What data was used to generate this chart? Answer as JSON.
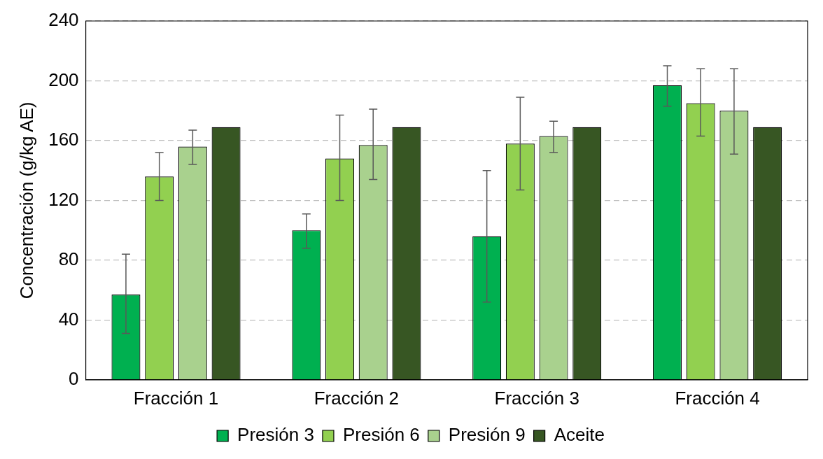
{
  "chart_data": {
    "type": "bar",
    "ylabel": "Concentración (g/kg AE)",
    "categories": [
      "Fracción 1",
      "Fracción 2",
      "Fracción 3",
      "Fracción 4"
    ],
    "series": [
      {
        "name": "Presión 3",
        "color": "#00b050",
        "values": [
          57,
          100,
          96,
          197
        ],
        "errors": [
          [
            31,
            84
          ],
          [
            88,
            111
          ],
          [
            52,
            140
          ],
          [
            183,
            210
          ]
        ]
      },
      {
        "name": "Presión 6",
        "color": "#92d050",
        "values": [
          136,
          148,
          158,
          185
        ],
        "errors": [
          [
            120,
            152
          ],
          [
            120,
            177
          ],
          [
            127,
            189
          ],
          [
            163,
            208
          ]
        ]
      },
      {
        "name": "Presión 9",
        "color": "#a9d18e",
        "values": [
          156,
          157,
          163,
          180
        ],
        "errors": [
          [
            144,
            167
          ],
          [
            134,
            181
          ],
          [
            152,
            173
          ],
          [
            151,
            208
          ]
        ]
      },
      {
        "name": "Aceite",
        "color": "#375623",
        "values": [
          169,
          169,
          169,
          169
        ]
      }
    ],
    "ylim": [
      0,
      240
    ],
    "yticks": [
      0,
      40,
      80,
      120,
      160,
      200,
      240
    ],
    "grid": "y",
    "legend": "bottom"
  }
}
